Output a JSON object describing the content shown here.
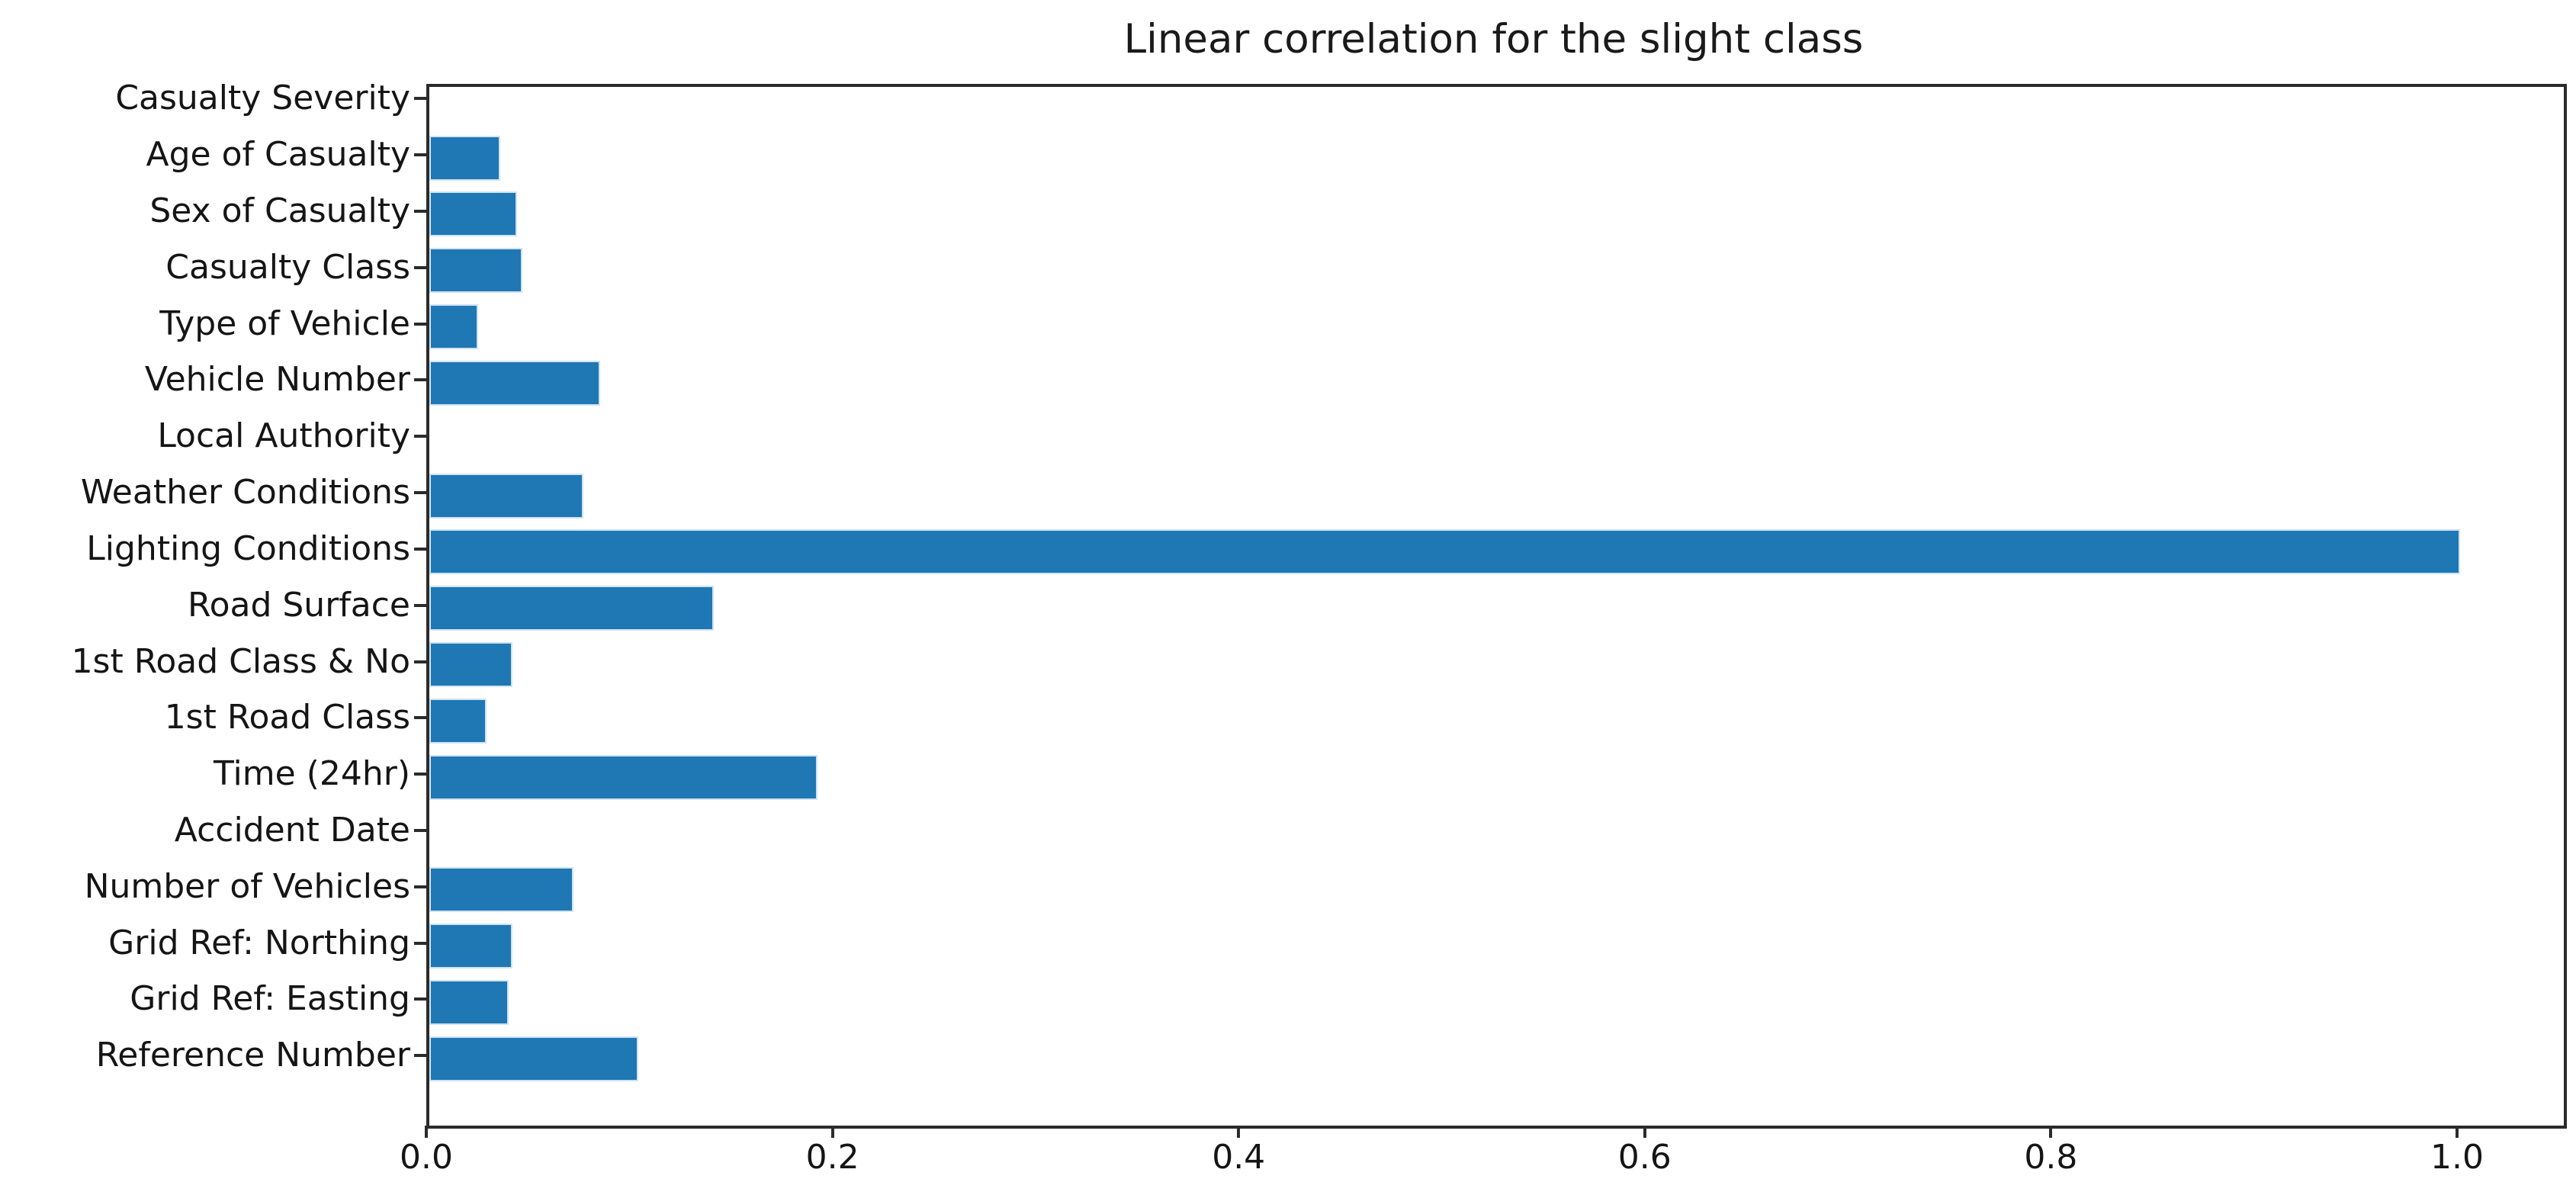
{
  "figure": {
    "background": "#ffffff"
  },
  "chart_data": {
    "type": "bar",
    "orientation": "horizontal",
    "title": "Linear correlation for the slight class",
    "xlabel": "",
    "ylabel": "",
    "grid": false,
    "legend": null,
    "categories": [
      "Casualty Severity",
      "Age of Casualty",
      "Sex of Casualty",
      "Casualty Class",
      "Type of Vehicle",
      "Vehicle Number",
      "Local Authority",
      "Weather Conditions",
      "Lighting Conditions",
      "Road Surface",
      "1st Road Class & No",
      "1st Road Class",
      "Time (24hr)",
      "Accident Date",
      "Number of Vehicles",
      "Grid Ref: Northing",
      "Grid Ref: Easting",
      "Reference Number"
    ],
    "values": [
      0.0,
      0.035,
      0.043,
      0.046,
      0.024,
      0.084,
      0.0,
      0.076,
      1.0,
      0.14,
      0.041,
      0.028,
      0.191,
      0.0,
      0.071,
      0.041,
      0.039,
      0.103
    ],
    "xlim": [
      0.0,
      1.051
    ],
    "xticks": [
      0.0,
      0.2,
      0.4,
      0.6,
      0.8,
      1.0
    ],
    "xtick_labels": [
      "0.0",
      "0.2",
      "0.4",
      "0.6",
      "0.8",
      "1.0"
    ],
    "colors": {
      "bar_fill": "#1f77b4",
      "bar_edge": "#cfe3f2",
      "spine": "#2b2b2b",
      "tick": "#2b2b2b",
      "text": "#151515",
      "title_text": "#1a1a1a",
      "background": "#ffffff"
    }
  }
}
